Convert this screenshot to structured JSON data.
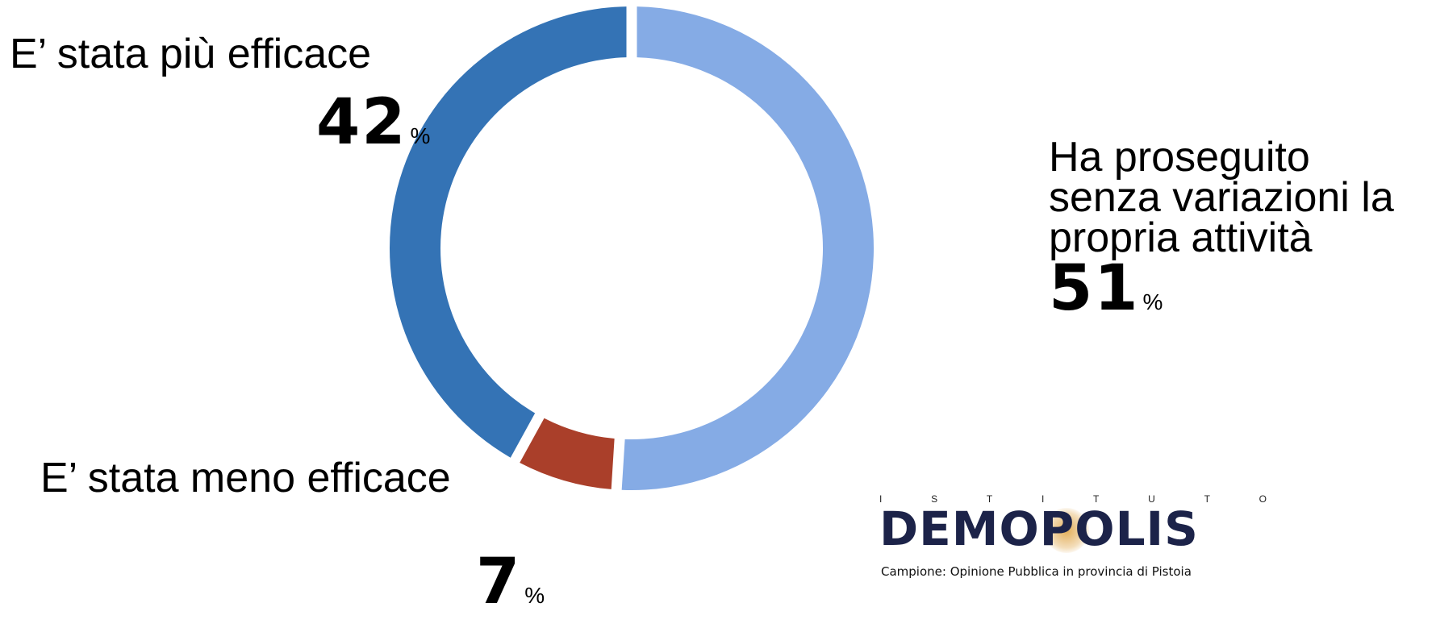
{
  "chart_data": {
    "type": "pie",
    "donut": true,
    "categories": [
      "E’ stata più efficace",
      "Ha proseguito senza variazioni la propria attività",
      "E’ stata meno efficace"
    ],
    "values": [
      42,
      51,
      7
    ],
    "value_labels": [
      "42",
      "51",
      "7"
    ],
    "unit": "%",
    "colors": [
      "#3473b5",
      "#85abe5",
      "#aa3f2a"
    ]
  },
  "logo": {
    "top_letters": [
      "I",
      "S",
      "T",
      "I",
      "T",
      "U",
      "T",
      "O"
    ],
    "name": "DEMOPOLIS",
    "color": "#1c2349"
  },
  "footer": {
    "sample_note": "Campione: Opinione Pubblica in provincia di Pistoia"
  }
}
